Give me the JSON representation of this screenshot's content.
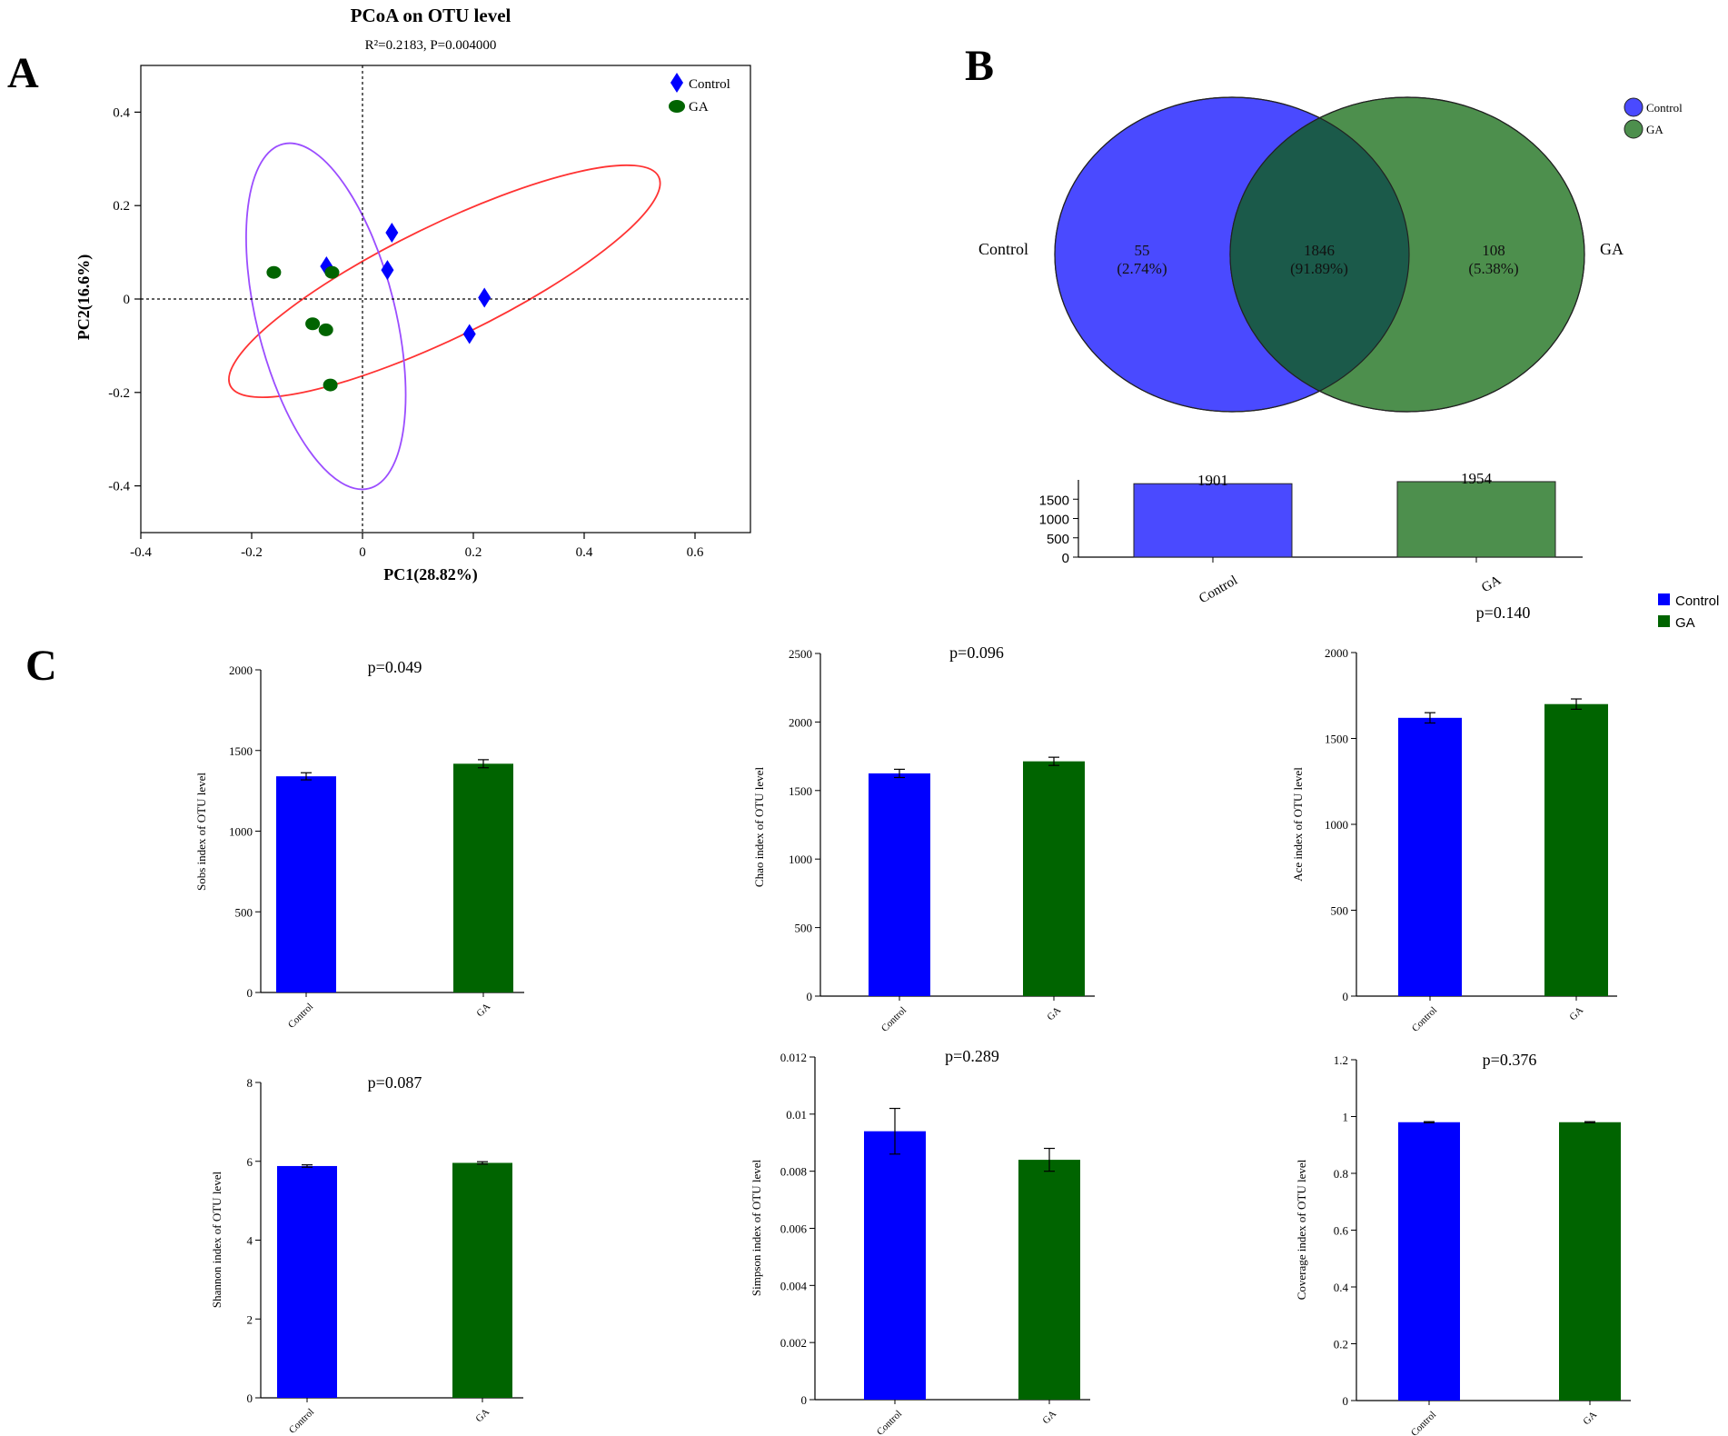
{
  "panels": {
    "a": "A",
    "b": "B",
    "c": "C"
  },
  "colors": {
    "control": "#0000ff",
    "ga": "#006400",
    "venn_control": "#4a4aff",
    "venn_ga": "#4d8f4d",
    "venn_overlap": "#1b5a4a",
    "ellipse_control": "#ff3333",
    "ellipse_ga": "#9b4dff"
  },
  "chart_data": [
    {
      "id": "pcoa",
      "type": "scatter",
      "title": "PCoA on OTU level",
      "subtitle": "R²=0.2183, P=0.004000",
      "xlabel": "PC1(28.82%)",
      "ylabel": "PC2(16.6%)",
      "xlim": [
        -0.4,
        0.7
      ],
      "ylim": [
        -0.5,
        0.5
      ],
      "xticks": [
        -0.4,
        -0.2,
        0,
        0.2,
        0.4,
        0.6
      ],
      "yticks": [
        -0.4,
        -0.2,
        0,
        0.2,
        0.4
      ],
      "xtick_labels": [
        "-0.4",
        "-0.2",
        "0",
        "0.2",
        "0.4",
        "0.6"
      ],
      "ytick_labels": [
        "-0.4",
        "-0.2",
        "0",
        "0.2",
        "0.4"
      ],
      "legend": [
        "Control",
        "GA"
      ],
      "legend_position": "top-right",
      "series": [
        {
          "name": "Control",
          "marker": "diamond",
          "points": [
            [
              -0.065,
              0.07
            ],
            [
              0.053,
              0.142
            ],
            [
              0.045,
              0.062
            ],
            [
              0.22,
              0.003
            ],
            [
              0.193,
              -0.075
            ]
          ]
        },
        {
          "name": "GA",
          "marker": "circle",
          "points": [
            [
              -0.16,
              0.057
            ],
            [
              -0.055,
              0.057
            ],
            [
              -0.09,
              -0.053
            ],
            [
              -0.066,
              -0.066
            ],
            [
              -0.058,
              -0.184
            ]
          ]
        }
      ],
      "ellipses": [
        {
          "name": "Control",
          "center": [
            0.148,
            0.038
          ],
          "rx": 0.43,
          "ry": 0.12,
          "rotation_deg": -26
        },
        {
          "name": "GA",
          "center": [
            -0.066,
            -0.037
          ],
          "rx": 0.125,
          "ry": 0.38,
          "rotation_deg": -14
        }
      ]
    },
    {
      "id": "venn",
      "type": "venn",
      "sets": [
        "Control",
        "GA"
      ],
      "only_control": {
        "value": "55",
        "pct": "(2.74%)"
      },
      "shared": {
        "value": "1846",
        "pct": "(91.89%)"
      },
      "only_ga": {
        "value": "108",
        "pct": "(5.38%)"
      },
      "legend": [
        "Control",
        "GA"
      ],
      "legend_position": "top-right"
    },
    {
      "id": "venn_totals",
      "type": "bar",
      "categories": [
        "Control",
        "GA"
      ],
      "values": [
        1901,
        1954
      ],
      "value_labels": [
        "1901",
        "1954"
      ],
      "ylim": [
        0,
        2000
      ],
      "yticks": [
        0,
        500,
        1000,
        1500
      ],
      "ytick_labels": [
        "0",
        "500",
        "1000",
        "1500"
      ]
    },
    {
      "id": "sobs",
      "type": "bar",
      "categories": [
        "Control",
        "GA"
      ],
      "ylabel": "Sobs index of OTU level",
      "values": [
        1340,
        1418
      ],
      "errors": [
        22,
        25
      ],
      "pvalue": "p=0.049",
      "ylim": [
        0,
        2000
      ],
      "yticks": [
        0,
        500,
        1000,
        1500,
        2000
      ],
      "ytick_labels": [
        "0",
        "500",
        "1000",
        "1500",
        "2000"
      ]
    },
    {
      "id": "chao",
      "type": "bar",
      "categories": [
        "Control",
        "GA"
      ],
      "ylabel": "Chao index of OTU level",
      "values": [
        1625,
        1713
      ],
      "errors": [
        30,
        30
      ],
      "pvalue": "p=0.096",
      "ylim": [
        0,
        2500
      ],
      "yticks": [
        0,
        500,
        1000,
        1500,
        2000,
        2500
      ],
      "ytick_labels": [
        "0",
        "500",
        "1000",
        "1500",
        "2000",
        "2500"
      ]
    },
    {
      "id": "ace",
      "type": "bar",
      "categories": [
        "Control",
        "GA"
      ],
      "ylabel": "Ace index of OTU level",
      "values": [
        1620,
        1700
      ],
      "errors": [
        30,
        30
      ],
      "pvalue": "p=0.140",
      "ylim": [
        0,
        2000
      ],
      "yticks": [
        0,
        500,
        1000,
        1500,
        2000
      ],
      "ytick_labels": [
        "0",
        "500",
        "1000",
        "1500",
        "2000"
      ]
    },
    {
      "id": "shannon",
      "type": "bar",
      "categories": [
        "Control",
        "GA"
      ],
      "ylabel": "Shannon index of OTU level",
      "values": [
        5.88,
        5.96
      ],
      "errors": [
        0.03,
        0.03
      ],
      "pvalue": "p=0.087",
      "ylim": [
        0,
        8
      ],
      "yticks": [
        0,
        2,
        4,
        6,
        8
      ],
      "ytick_labels": [
        "0",
        "2",
        "4",
        "6",
        "8"
      ]
    },
    {
      "id": "simpson",
      "type": "bar",
      "categories": [
        "Control",
        "GA"
      ],
      "ylabel": "Simpson index of OTU level",
      "values": [
        0.0094,
        0.0084
      ],
      "errors": [
        0.0008,
        0.0004
      ],
      "pvalue": "p=0.289",
      "ylim": [
        0,
        0.012
      ],
      "yticks": [
        0,
        0.002,
        0.004,
        0.006,
        0.008,
        0.01,
        0.012
      ],
      "ytick_labels": [
        "0",
        "0.002",
        "0.004",
        "0.006",
        "0.008",
        "0.01",
        "0.012"
      ]
    },
    {
      "id": "coverage",
      "type": "bar",
      "categories": [
        "Control",
        "GA"
      ],
      "ylabel": "Coverage index of OTU level",
      "values": [
        0.98,
        0.98
      ],
      "errors": [
        0.002,
        0.002
      ],
      "pvalue": "p=0.376",
      "ylim": [
        0,
        1.2
      ],
      "yticks": [
        0,
        0.2,
        0.4,
        0.6,
        0.8,
        1,
        1.2
      ],
      "ytick_labels": [
        "0",
        "0.2",
        "0.4",
        "0.6",
        "0.8",
        "1",
        "1.2"
      ]
    }
  ],
  "legend_c": [
    "Control",
    "GA"
  ]
}
